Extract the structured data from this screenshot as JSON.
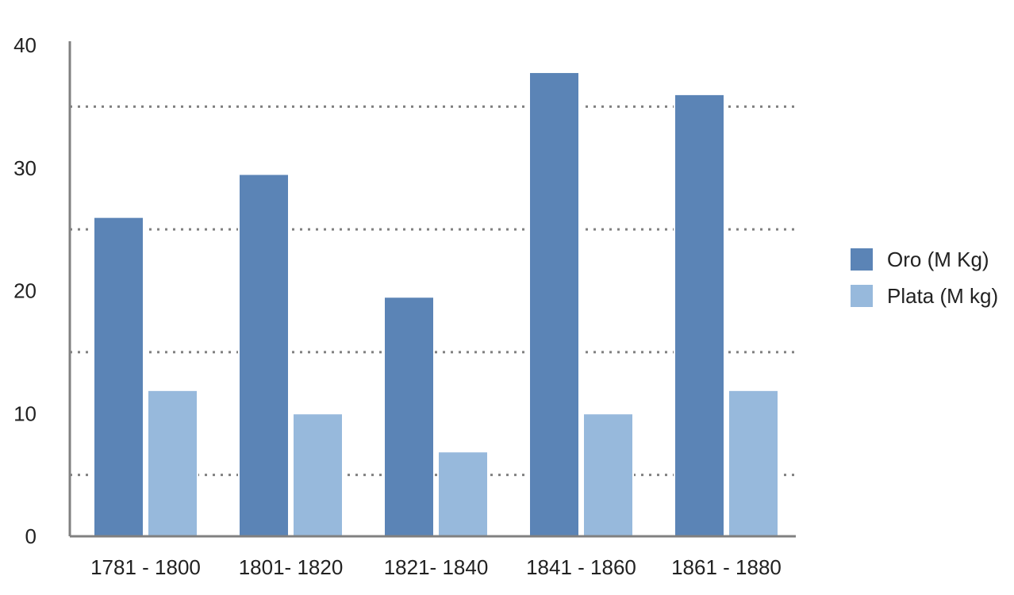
{
  "chart_data": {
    "type": "bar",
    "categories": [
      "1781 - 1800",
      "1801- 1820",
      "1821- 1840",
      "1841 - 1860",
      "1861 - 1880"
    ],
    "series": [
      {
        "name": "Oro (M Kg)",
        "color": "#5b84b6",
        "values": [
          26,
          29.5,
          19.5,
          37.8,
          36
        ]
      },
      {
        "name": "Plata (M kg)",
        "color": "#97b9dc",
        "values": [
          11.9,
          10,
          6.9,
          10,
          11.9
        ]
      }
    ],
    "ylim": [
      0,
      40
    ],
    "y_ticks": [
      "0",
      "10",
      "20",
      "30",
      "40"
    ],
    "gridlines": [
      5,
      15,
      25,
      35
    ],
    "grid": "dotted",
    "legend_position": "right",
    "xlabel": "",
    "ylabel": "",
    "title": ""
  }
}
